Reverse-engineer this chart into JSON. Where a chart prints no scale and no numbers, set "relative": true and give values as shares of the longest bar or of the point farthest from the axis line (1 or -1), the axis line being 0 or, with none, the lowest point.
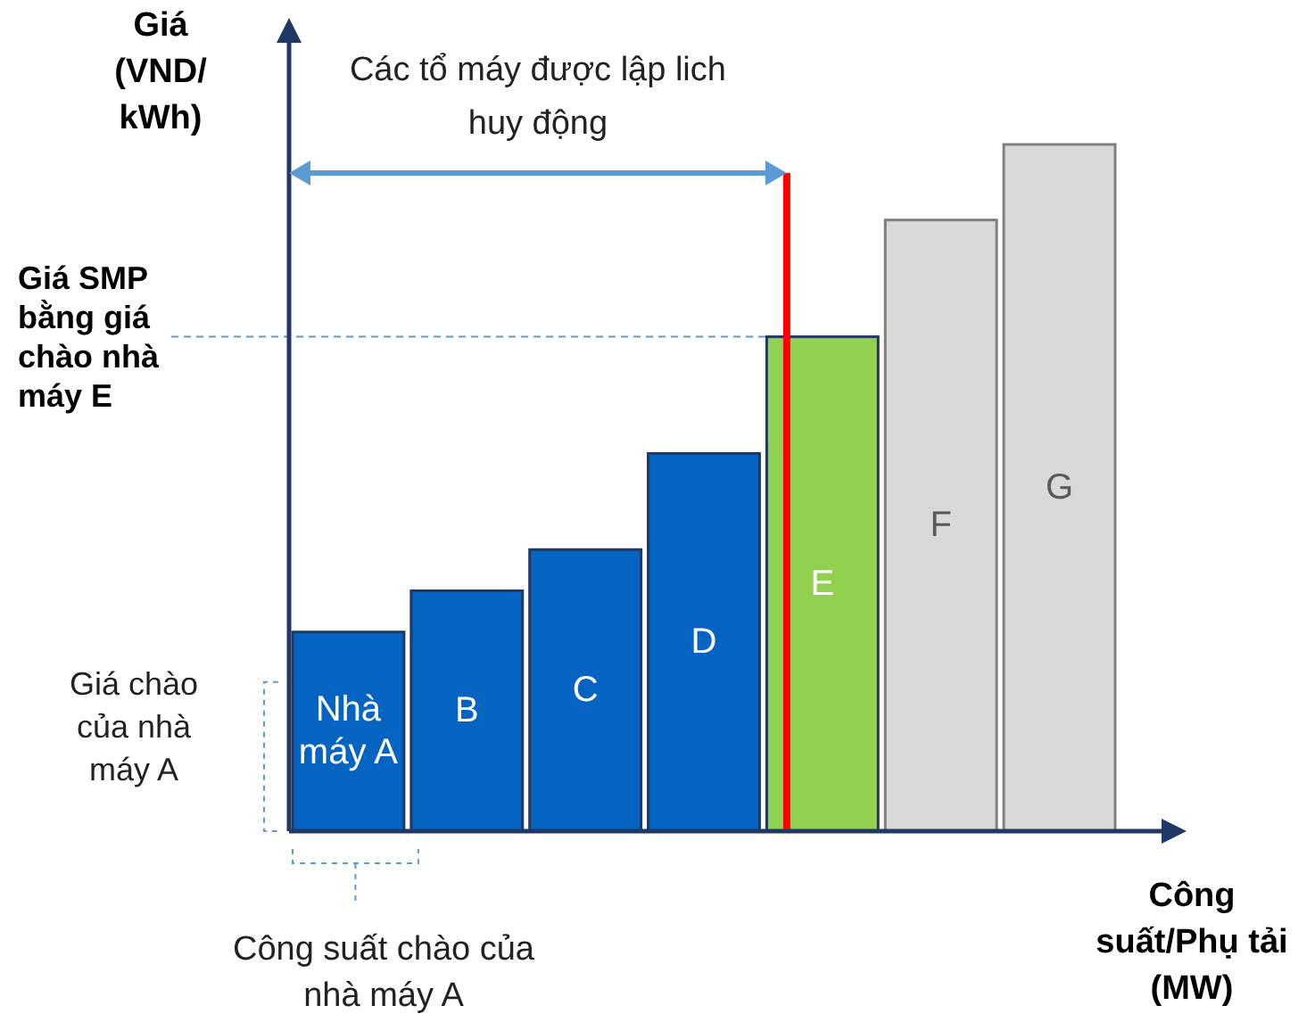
{
  "chart_data": {
    "type": "bar",
    "relative": true,
    "ylabel": "Giá (VND/ kWh)",
    "xlabel": "Công suất/Phụ tải (MW)",
    "categories": [
      "Nhà máy A",
      "B",
      "C",
      "D",
      "E",
      "F",
      "G"
    ],
    "values": [
      0.29,
      0.35,
      0.41,
      0.55,
      0.72,
      0.89,
      1
    ],
    "colors": [
      "#0563c1",
      "#0563c1",
      "#0563c1",
      "#0563c1",
      "#92d050",
      "#d9d9d9",
      "#d9d9d9"
    ],
    "ref_lines": [
      {
        "axis": "y",
        "value": 0.72,
        "label": "Giá SMP bằng giá chào nhà máy E",
        "color": "#5b9bd5",
        "line_style": "dashed"
      },
      {
        "axis": "x",
        "value": "E",
        "color": "#ff0000"
      }
    ],
    "annotations": [
      "Các tổ máy được lập lich huy động",
      "Giá chào của nhà máy A",
      "Công suất chào của nhà máy A"
    ]
  }
}
